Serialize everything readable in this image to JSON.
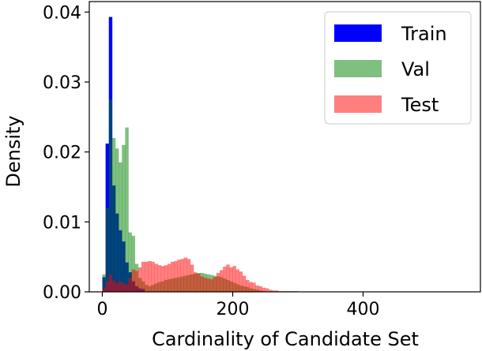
{
  "chart_data": {
    "type": "histogram",
    "xlabel": "Cardinality of Candidate Set",
    "ylabel": "Density",
    "xlim": [
      -20,
      580
    ],
    "ylim": [
      0,
      0.0415
    ],
    "xticks": [
      0,
      200,
      400
    ],
    "yticks": [
      0.0,
      0.01,
      0.02,
      0.03,
      0.04
    ],
    "ytick_labels": [
      "0.00",
      "0.01",
      "0.02",
      "0.03",
      "0.04"
    ],
    "bin_width": 5,
    "grid": false,
    "legend_position": "top-right",
    "series": [
      {
        "name": "Train",
        "color": "#0000ff",
        "alpha": 1.0,
        "x_start": 0,
        "values": [
          0.0021,
          0.0212,
          0.0393,
          0.0152,
          0.0112,
          0.0088,
          0.0072,
          0.0042,
          0.0028,
          0.0015,
          0.0008,
          0.0005,
          0.0004
        ]
      },
      {
        "name": "Val",
        "color": "#008000",
        "alpha": 0.5,
        "x_start": 0,
        "values": [
          0.0025,
          0.012,
          0.0275,
          0.022,
          0.0205,
          0.0185,
          0.021,
          0.0235,
          0.0085,
          0.008,
          0.004,
          0.002,
          0.0015,
          0.001,
          0.0008,
          0.001,
          0.0012,
          0.0014,
          0.0015,
          0.0017,
          0.0018,
          0.0019,
          0.002,
          0.0021,
          0.0022,
          0.0023,
          0.0024,
          0.0025,
          0.0026,
          0.0027,
          0.0027,
          0.0026,
          0.0025,
          0.0024,
          0.0023,
          0.0022,
          0.0021,
          0.0019,
          0.0017,
          0.0015,
          0.0013,
          0.0011,
          0.0009,
          0.0008,
          0.0007,
          0.0005,
          0.0004,
          0.0003,
          0.0002,
          0.0001
        ]
      },
      {
        "name": "Test",
        "color": "#ff0000",
        "alpha": 0.5,
        "x_start": 0,
        "values": [
          0.0005,
          0.0015,
          0.0025,
          0.0016,
          0.0012,
          0.0015,
          0.0012,
          0.001,
          0.002,
          0.0032,
          0.003,
          0.0035,
          0.0043,
          0.0043,
          0.0044,
          0.0043,
          0.004,
          0.0038,
          0.0037,
          0.0038,
          0.004,
          0.0043,
          0.0044,
          0.0046,
          0.0047,
          0.0049,
          0.0047,
          0.0039,
          0.0028,
          0.0026,
          0.0022,
          0.002,
          0.0019,
          0.0018,
          0.0021,
          0.0027,
          0.0031,
          0.0036,
          0.0039,
          0.0035,
          0.0037,
          0.0032,
          0.0029,
          0.0023,
          0.0017,
          0.0014,
          0.0013,
          0.0009,
          0.0008,
          0.0006,
          0.0005,
          0.0003,
          0.0002,
          0.0002,
          0.0001,
          0.0001,
          0.0001,
          0.0001,
          0.0001,
          0.0001
        ]
      }
    ]
  }
}
